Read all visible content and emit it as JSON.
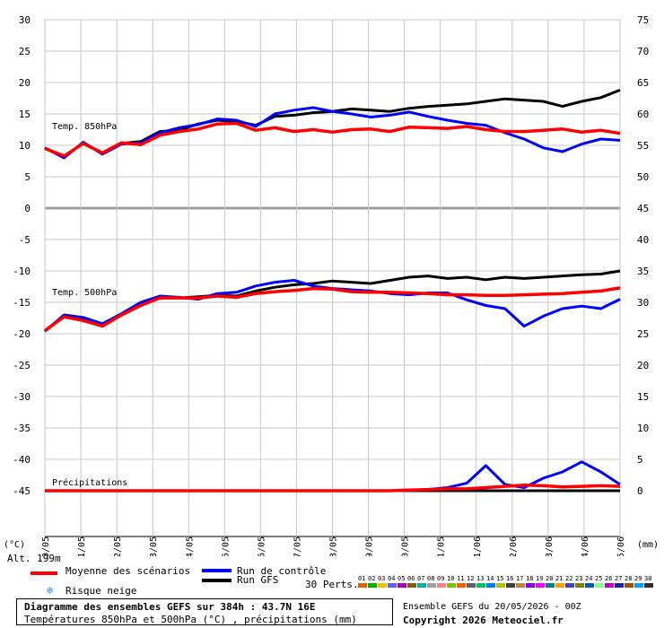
{
  "chart_data": {
    "type": "line",
    "title": "Diagramme des ensembles GEFS sur 384h : 43.7N 16E",
    "subtitle": "Températures 850hPa et 500hPa (°C) , précipitations (mm)",
    "dates": [
      "20/05",
      "21/05",
      "22/05",
      "23/05",
      "24/05",
      "25/05",
      "26/05",
      "27/05",
      "28/05",
      "29/05",
      "30/05",
      "31/05",
      "01/06",
      "02/06",
      "03/06",
      "04/06",
      "05/06"
    ],
    "left_axis": {
      "unit": "(°C)",
      "ticks": [
        30,
        25,
        20,
        15,
        10,
        5,
        0,
        -5,
        -10,
        -15,
        -20,
        -25,
        -30,
        -35,
        -40,
        -45
      ]
    },
    "right_axis": {
      "unit": "(mm)",
      "ticks": [
        75,
        70,
        65,
        60,
        55,
        50,
        45,
        40,
        35,
        30,
        25,
        20,
        15,
        10,
        5,
        0
      ]
    },
    "panel_labels": {
      "t850": "Temp. 850hPa",
      "t500": "Temp. 500hPa",
      "precip": "Précipitations"
    },
    "altitude_label": "Alt. 199m",
    "series": [
      {
        "name": "Moyenne des scénarios",
        "color": "#ff0000",
        "t850": [
          9.5,
          8.3,
          10.3,
          8.8,
          10.4,
          10.1,
          11.6,
          12.2,
          12.6,
          13.4,
          13.5,
          12.4,
          12.8,
          12.2,
          12.5,
          12.1,
          12.5,
          12.6,
          12.2,
          12.9,
          12.8,
          12.7,
          13.0,
          12.5,
          12.2,
          12.2,
          12.4,
          12.6,
          12.1,
          12.4,
          11.9
        ],
        "t500": [
          -19.5,
          -17.3,
          -17.9,
          -18.8,
          -17.0,
          -15.5,
          -14.3,
          -14.3,
          -14.3,
          -14.0,
          -14.2,
          -13.6,
          -13.3,
          -13.1,
          -12.8,
          -12.9,
          -13.3,
          -13.4,
          -13.4,
          -13.5,
          -13.6,
          -13.8,
          -13.8,
          -13.9,
          -13.9,
          -13.8,
          -13.7,
          -13.6,
          -13.4,
          -13.2,
          -12.7
        ],
        "precip": [
          0,
          0,
          0,
          0,
          0,
          0,
          0,
          0,
          0,
          0,
          0,
          0,
          0,
          0,
          0,
          0,
          0,
          0,
          0,
          0.1,
          0.2,
          0.3,
          0.3,
          0.5,
          0.7,
          0.9,
          0.8,
          0.6,
          0.7,
          0.8,
          0.7
        ]
      },
      {
        "name": "Run de contrôle",
        "color": "#0000ff",
        "t850": [
          9.6,
          8.0,
          10.5,
          8.6,
          10.2,
          10.4,
          12.0,
          12.8,
          13.3,
          14.2,
          14.0,
          13.0,
          15.0,
          15.6,
          16.0,
          15.4,
          15.0,
          14.5,
          14.8,
          15.3,
          14.6,
          14.0,
          13.5,
          13.2,
          12.0,
          11.0,
          9.6,
          9.0,
          10.2,
          11.0,
          10.8
        ],
        "t500": [
          -19.6,
          -17.0,
          -17.4,
          -18.4,
          -16.8,
          -15.0,
          -14.0,
          -14.2,
          -14.5,
          -13.6,
          -13.4,
          -12.4,
          -11.8,
          -11.5,
          -12.4,
          -12.8,
          -13.0,
          -13.2,
          -13.6,
          -13.8,
          -13.5,
          -13.5,
          -14.6,
          -15.5,
          -16.0,
          -18.8,
          -17.2,
          -16.0,
          -15.6,
          -16.0,
          -14.5
        ],
        "precip": [
          0,
          0,
          0,
          0,
          0,
          0,
          0,
          0,
          0,
          0,
          0,
          0,
          0,
          0,
          0,
          0,
          0,
          0,
          0,
          0,
          0.2,
          0.5,
          1.2,
          4.0,
          1.0,
          0.5,
          2.0,
          3.0,
          4.6,
          3.0,
          1.0
        ]
      },
      {
        "name": "Run GFS",
        "color": "#000000",
        "t850": [
          9.6,
          8.1,
          10.4,
          8.7,
          10.3,
          10.6,
          12.2,
          12.4,
          13.4,
          14.0,
          13.8,
          13.2,
          14.6,
          14.8,
          15.2,
          15.4,
          15.8,
          15.6,
          15.4,
          15.9,
          16.2,
          16.4,
          16.6,
          17.0,
          17.4,
          17.2,
          17.0,
          16.2,
          17.0,
          17.6,
          18.8
        ],
        "t500": [
          -19.6,
          -17.2,
          -17.6,
          -18.6,
          -16.9,
          -15.3,
          -14.2,
          -14.3,
          -14.1,
          -13.9,
          -14.0,
          -13.2,
          -12.6,
          -12.2,
          -12.0,
          -11.6,
          -11.8,
          -12.0,
          -11.5,
          -11.0,
          -10.8,
          -11.2,
          -11.0,
          -11.4,
          -11.0,
          -11.2,
          -11.0,
          -10.8,
          -10.6,
          -10.5,
          -10.0
        ],
        "precip": [
          0,
          0,
          0,
          0,
          0,
          0,
          0,
          0,
          0,
          0,
          0,
          0,
          0,
          0,
          0,
          0,
          0,
          0,
          0,
          0,
          0,
          0,
          0,
          0,
          0,
          0,
          0,
          0,
          0,
          0,
          0
        ]
      }
    ],
    "perturbations_count": 30
  },
  "legend": {
    "mean_label": "Moyenne des scénarios",
    "control_label": "Run de contrôle",
    "gfs_label": "Run GFS",
    "snow_label": "Risque neige",
    "perts_label": "30 Perts.",
    "pert_ids": [
      "01",
      "02",
      "03",
      "04",
      "05",
      "06",
      "07",
      "08",
      "09",
      "10",
      "11",
      "12",
      "13",
      "14",
      "15",
      "16",
      "17",
      "18",
      "19",
      "20",
      "21",
      "22",
      "23",
      "24",
      "25",
      "26",
      "27",
      "28",
      "29",
      "30"
    ],
    "pert_colors": [
      "#e06000",
      "#00b000",
      "#f0c000",
      "#6060ff",
      "#b000b0",
      "#806000",
      "#00b0b0",
      "#a0a0a0",
      "#ff8080",
      "#80c000",
      "#ff6000",
      "#606060",
      "#00c060",
      "#0080ff",
      "#c0c000",
      "#404040",
      "#c08040",
      "#8000ff",
      "#ff00ff",
      "#008080",
      "#ffa000",
      "#4040c0",
      "#808000",
      "#0060a0",
      "#80ff80",
      "#c000c0",
      "#2020a0",
      "#a05000",
      "#00a0ff",
      "#303030"
    ]
  },
  "footer": {
    "title": "Diagramme des ensembles GEFS sur 384h : 43.7N 16E",
    "subtitle": "Températures 850hPa et 500hPa (°C) , précipitations (mm)",
    "run": "Ensemble GEFS du 20/05/2026 - 00Z",
    "copyright": "Copyright 2026 Meteociel.fr"
  },
  "colors": {
    "grid": "#c8c8c8",
    "separator": "#a0a0a0",
    "mean": "#ff0000",
    "control": "#0000ff",
    "gfs": "#000000"
  }
}
